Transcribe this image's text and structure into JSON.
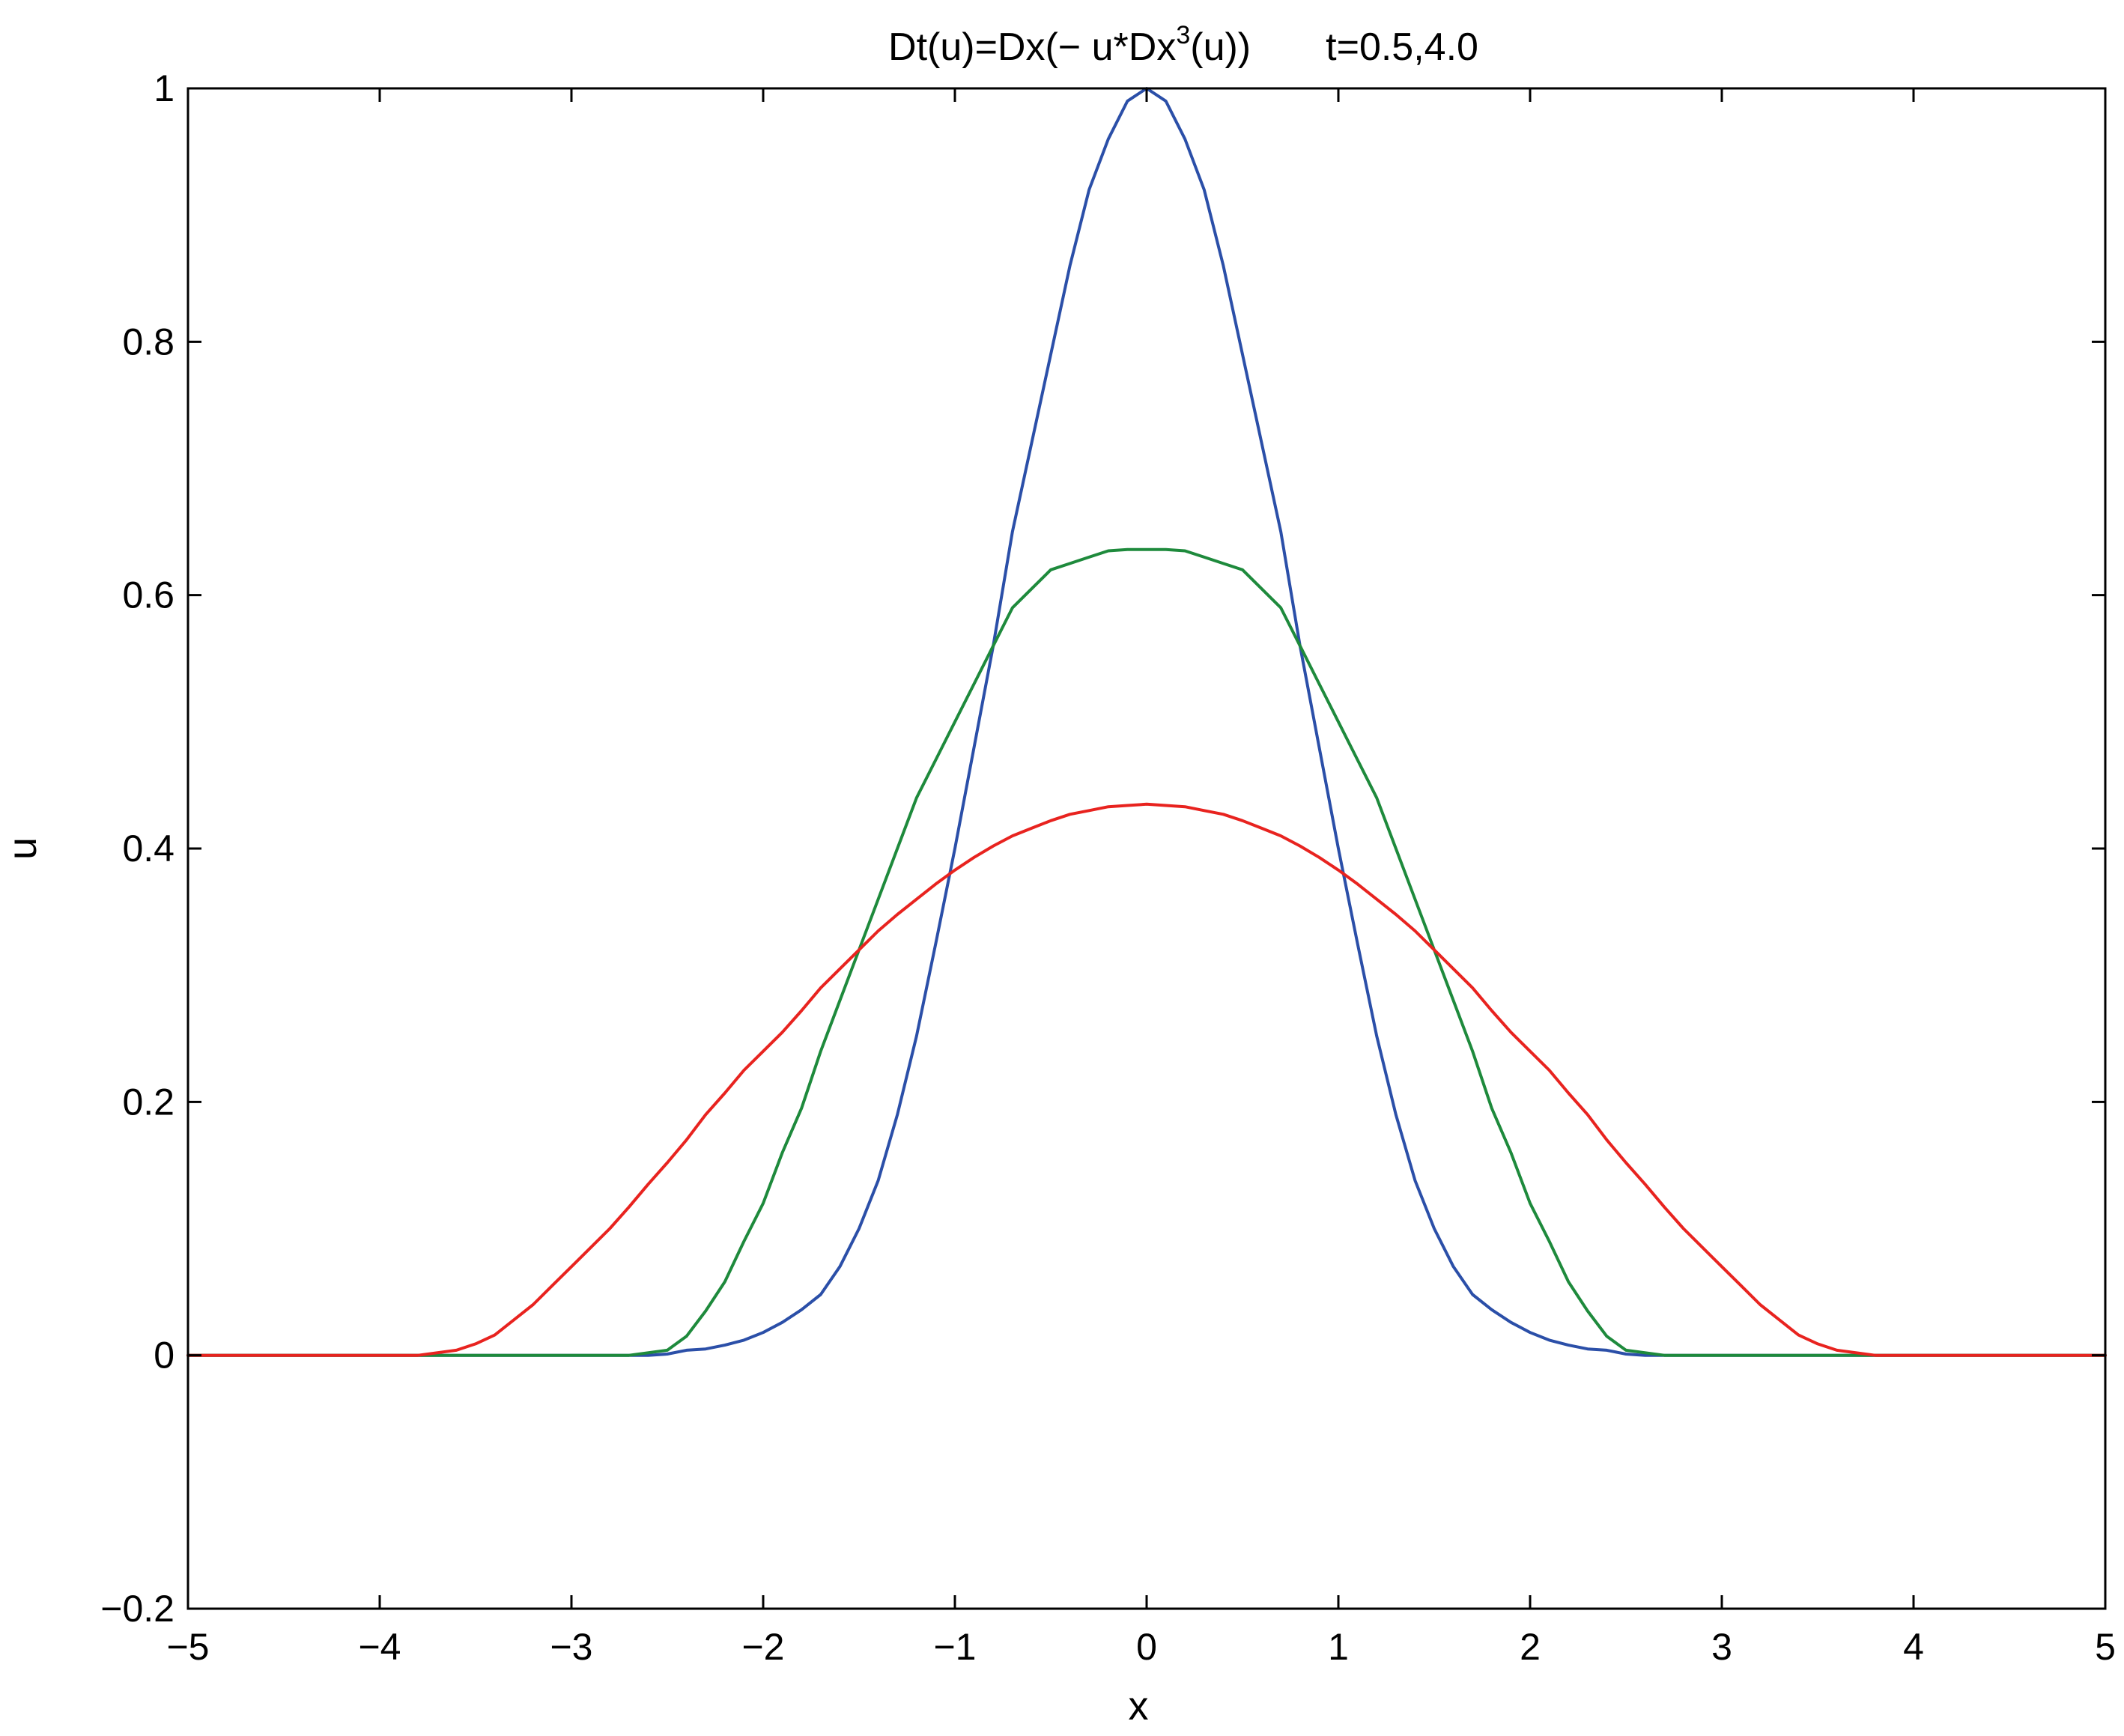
{
  "chart_data": {
    "type": "line",
    "title": {
      "pre": "Dt(u)=Dx(− u*Dx",
      "sup": "3",
      "post": "(u))",
      "time": "t=0.5,4.0"
    },
    "xlabel": "x",
    "ylabel": "u",
    "xlim": [
      -5,
      5
    ],
    "ylim": [
      -0.2,
      1
    ],
    "xticks": [
      -5,
      -4,
      -3,
      -2,
      -1,
      0,
      1,
      2,
      3,
      4,
      5
    ],
    "yticks": [
      -0.2,
      0,
      0.2,
      0.4,
      0.6,
      0.8,
      1
    ],
    "xtick_labels": [
      "−5",
      "−4",
      "−3",
      "−2",
      "−1",
      "0",
      "1",
      "2",
      "3",
      "4",
      "5"
    ],
    "ytick_labels": [
      "−0.2",
      "0",
      "0.2",
      "0.4",
      "0.6",
      "0.8",
      "1"
    ],
    "grid": false,
    "series": [
      {
        "color": "#2b4fa8",
        "points": [
          [
            -5,
            0
          ],
          [
            -2.6,
            0
          ],
          [
            -2.5,
            0.001
          ],
          [
            -2.4,
            0.004
          ],
          [
            -2.3,
            0.005
          ],
          [
            -2.2,
            0.008
          ],
          [
            -2.1,
            0.012
          ],
          [
            -2.0,
            0.018
          ],
          [
            -1.9,
            0.026
          ],
          [
            -1.8,
            0.036
          ],
          [
            -1.7,
            0.048
          ],
          [
            -1.6,
            0.07
          ],
          [
            -1.5,
            0.1
          ],
          [
            -1.4,
            0.138
          ],
          [
            -1.3,
            0.19
          ],
          [
            -1.2,
            0.252
          ],
          [
            -1.1,
            0.325
          ],
          [
            -1.0,
            0.4
          ],
          [
            -0.9,
            0.48
          ],
          [
            -0.8,
            0.56
          ],
          [
            -0.7,
            0.65
          ],
          [
            -0.6,
            0.72
          ],
          [
            -0.5,
            0.79
          ],
          [
            -0.4,
            0.86
          ],
          [
            -0.3,
            0.92
          ],
          [
            -0.2,
            0.96
          ],
          [
            -0.1,
            0.99
          ],
          [
            0,
            1.0
          ],
          [
            0.1,
            0.99
          ],
          [
            0.2,
            0.96
          ],
          [
            0.3,
            0.92
          ],
          [
            0.4,
            0.86
          ],
          [
            0.5,
            0.79
          ],
          [
            0.6,
            0.72
          ],
          [
            0.7,
            0.65
          ],
          [
            0.8,
            0.56
          ],
          [
            0.9,
            0.48
          ],
          [
            1.0,
            0.4
          ],
          [
            1.1,
            0.325
          ],
          [
            1.2,
            0.252
          ],
          [
            1.3,
            0.19
          ],
          [
            1.4,
            0.138
          ],
          [
            1.5,
            0.1
          ],
          [
            1.6,
            0.07
          ],
          [
            1.7,
            0.048
          ],
          [
            1.8,
            0.036
          ],
          [
            1.9,
            0.026
          ],
          [
            2.0,
            0.018
          ],
          [
            2.1,
            0.012
          ],
          [
            2.2,
            0.008
          ],
          [
            2.3,
            0.005
          ],
          [
            2.4,
            0.004
          ],
          [
            2.5,
            0.001
          ],
          [
            2.6,
            0
          ],
          [
            5,
            0
          ]
        ]
      },
      {
        "color": "#1e8a3c",
        "points": [
          [
            -5,
            0
          ],
          [
            -2.7,
            0
          ],
          [
            -2.5,
            0.004
          ],
          [
            -2.4,
            0.015
          ],
          [
            -2.3,
            0.035
          ],
          [
            -2.2,
            0.058
          ],
          [
            -2.1,
            0.09
          ],
          [
            -2.0,
            0.12
          ],
          [
            -1.9,
            0.16
          ],
          [
            -1.8,
            0.195
          ],
          [
            -1.7,
            0.24
          ],
          [
            -1.6,
            0.28
          ],
          [
            -1.5,
            0.32
          ],
          [
            -1.4,
            0.36
          ],
          [
            -1.3,
            0.4
          ],
          [
            -1.2,
            0.44
          ],
          [
            -1.1,
            0.47
          ],
          [
            -1.0,
            0.5
          ],
          [
            -0.9,
            0.53
          ],
          [
            -0.8,
            0.56
          ],
          [
            -0.7,
            0.59
          ],
          [
            -0.6,
            0.605
          ],
          [
            -0.5,
            0.62
          ],
          [
            -0.4,
            0.625
          ],
          [
            -0.3,
            0.63
          ],
          [
            -0.2,
            0.635
          ],
          [
            -0.1,
            0.636
          ],
          [
            0,
            0.636
          ],
          [
            0.1,
            0.636
          ],
          [
            0.2,
            0.635
          ],
          [
            0.3,
            0.63
          ],
          [
            0.4,
            0.625
          ],
          [
            0.5,
            0.62
          ],
          [
            0.6,
            0.605
          ],
          [
            0.7,
            0.59
          ],
          [
            0.8,
            0.56
          ],
          [
            0.9,
            0.53
          ],
          [
            1.0,
            0.5
          ],
          [
            1.1,
            0.47
          ],
          [
            1.2,
            0.44
          ],
          [
            1.3,
            0.4
          ],
          [
            1.4,
            0.36
          ],
          [
            1.5,
            0.32
          ],
          [
            1.6,
            0.28
          ],
          [
            1.7,
            0.24
          ],
          [
            1.8,
            0.195
          ],
          [
            1.9,
            0.16
          ],
          [
            2.0,
            0.12
          ],
          [
            2.1,
            0.09
          ],
          [
            2.2,
            0.058
          ],
          [
            2.3,
            0.035
          ],
          [
            2.4,
            0.015
          ],
          [
            2.5,
            0.004
          ],
          [
            2.7,
            0
          ],
          [
            5,
            0
          ]
        ]
      },
      {
        "color": "#e8231f",
        "points": [
          [
            -5,
            0
          ],
          [
            -3.8,
            0
          ],
          [
            -3.6,
            0.004
          ],
          [
            -3.5,
            0.009
          ],
          [
            -3.4,
            0.016
          ],
          [
            -3.3,
            0.028
          ],
          [
            -3.2,
            0.04
          ],
          [
            -3.1,
            0.055
          ],
          [
            -3.0,
            0.07
          ],
          [
            -2.9,
            0.085
          ],
          [
            -2.8,
            0.1
          ],
          [
            -2.7,
            0.117
          ],
          [
            -2.6,
            0.135
          ],
          [
            -2.5,
            0.152
          ],
          [
            -2.4,
            0.17
          ],
          [
            -2.3,
            0.19
          ],
          [
            -2.2,
            0.207
          ],
          [
            -2.1,
            0.225
          ],
          [
            -2.0,
            0.24
          ],
          [
            -1.9,
            0.255
          ],
          [
            -1.8,
            0.272
          ],
          [
            -1.7,
            0.29
          ],
          [
            -1.6,
            0.305
          ],
          [
            -1.5,
            0.32
          ],
          [
            -1.4,
            0.335
          ],
          [
            -1.3,
            0.348
          ],
          [
            -1.2,
            0.36
          ],
          [
            -1.1,
            0.372
          ],
          [
            -1.0,
            0.383
          ],
          [
            -0.9,
            0.393
          ],
          [
            -0.8,
            0.402
          ],
          [
            -0.7,
            0.41
          ],
          [
            -0.6,
            0.416
          ],
          [
            -0.5,
            0.422
          ],
          [
            -0.4,
            0.427
          ],
          [
            -0.3,
            0.43
          ],
          [
            -0.2,
            0.433
          ],
          [
            -0.1,
            0.434
          ],
          [
            0,
            0.435
          ],
          [
            0.1,
            0.434
          ],
          [
            0.2,
            0.433
          ],
          [
            0.3,
            0.43
          ],
          [
            0.4,
            0.427
          ],
          [
            0.5,
            0.422
          ],
          [
            0.6,
            0.416
          ],
          [
            0.7,
            0.41
          ],
          [
            0.8,
            0.402
          ],
          [
            0.9,
            0.393
          ],
          [
            1.0,
            0.383
          ],
          [
            1.1,
            0.372
          ],
          [
            1.2,
            0.36
          ],
          [
            1.3,
            0.348
          ],
          [
            1.4,
            0.335
          ],
          [
            1.5,
            0.32
          ],
          [
            1.6,
            0.305
          ],
          [
            1.7,
            0.29
          ],
          [
            1.8,
            0.272
          ],
          [
            1.9,
            0.255
          ],
          [
            2.0,
            0.24
          ],
          [
            2.1,
            0.225
          ],
          [
            2.2,
            0.207
          ],
          [
            2.3,
            0.19
          ],
          [
            2.4,
            0.17
          ],
          [
            2.5,
            0.152
          ],
          [
            2.6,
            0.135
          ],
          [
            2.7,
            0.117
          ],
          [
            2.8,
            0.1
          ],
          [
            2.9,
            0.085
          ],
          [
            3.0,
            0.07
          ],
          [
            3.1,
            0.055
          ],
          [
            3.2,
            0.04
          ],
          [
            3.3,
            0.028
          ],
          [
            3.4,
            0.016
          ],
          [
            3.5,
            0.009
          ],
          [
            3.6,
            0.004
          ],
          [
            3.8,
            0
          ],
          [
            5,
            0
          ]
        ]
      }
    ]
  }
}
